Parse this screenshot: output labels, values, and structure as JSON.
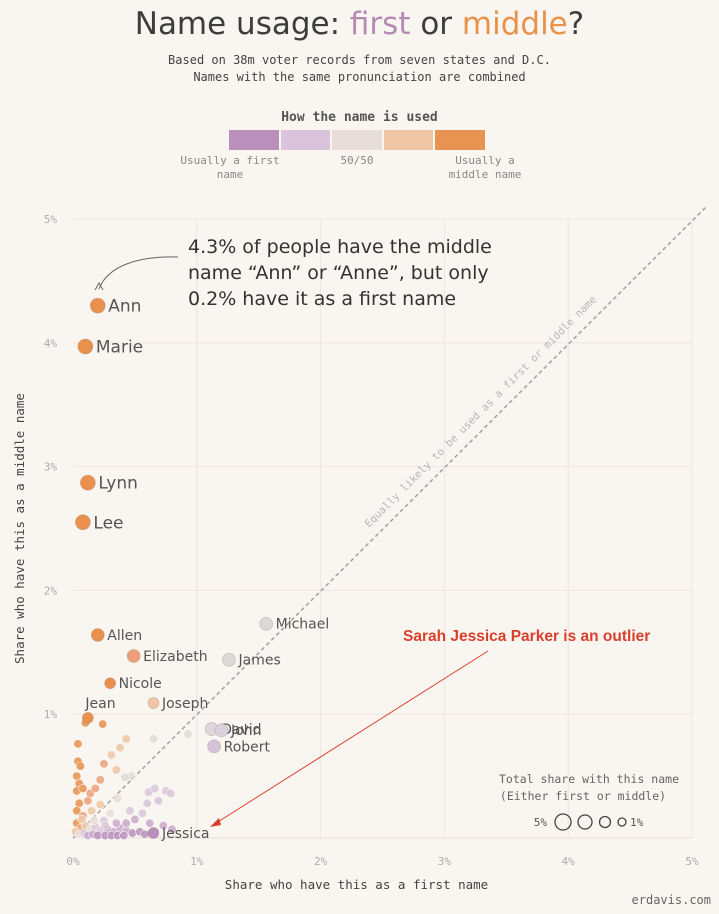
{
  "header": {
    "title_pre": "Name usage: ",
    "title_first": "first",
    "title_or": " or ",
    "title_middle": "middle",
    "title_q": "?",
    "subtitle1": "Based on 38m voter records from seven states and D.C.",
    "subtitle2": "Names with the same pronunciation are combined"
  },
  "color_legend": {
    "title": "How the name is used",
    "left_label": "Usually a first name",
    "center_label": "50/50",
    "right_label": "Usually a middle name",
    "colors": [
      "#b98fbc",
      "#d9c4dc",
      "#e8ddd8",
      "#f0c6a4",
      "#e99352"
    ]
  },
  "credit": "erdavis.com",
  "chart_data": {
    "type": "scatter",
    "title": "Name usage: first or middle?",
    "xlabel": "Share who have this as a first name",
    "ylabel": "Share who have this as a middle name",
    "xlim": [
      0,
      5
    ],
    "ylim": [
      0,
      5
    ],
    "x_ticks": [
      "0%",
      "1%",
      "2%",
      "3%",
      "4%",
      "5%"
    ],
    "y_ticks": [
      "1%",
      "2%",
      "3%",
      "4%",
      "5%"
    ],
    "grid": true,
    "diagonal_label": "Equally likely to be used as a first or middle name",
    "size_legend": {
      "title1": "Total share with this name",
      "title2": "(Either first or middle)",
      "high": "5%",
      "low": "1%"
    },
    "annotations": [
      {
        "text": "4.3% of people have the middle name “Ann” or “Anne”, but only 0.2% have it as a first name",
        "lines": [
          "4.3% of people have the middle",
          "name “Ann” or “Anne”, but only",
          "0.2% have it as a first name"
        ]
      },
      {
        "text": "Sarah Jessica Parker is an outlier"
      }
    ],
    "colors": {
      "first": "#b98fbc",
      "balanced": "#dcdad6",
      "middle": "#e8904c",
      "annotation_red": "#d9402b"
    },
    "labeled_points": [
      {
        "name": "Ann",
        "x": 0.2,
        "y": 4.3,
        "color": "#e8904c"
      },
      {
        "name": "Marie",
        "x": 0.1,
        "y": 3.97,
        "color": "#e8904c"
      },
      {
        "name": "Lynn",
        "x": 0.12,
        "y": 2.87,
        "color": "#e8904c"
      },
      {
        "name": "Lee",
        "x": 0.08,
        "y": 2.55,
        "color": "#e8904c"
      },
      {
        "name": "Allen",
        "x": 0.2,
        "y": 1.64,
        "color": "#e8904c"
      },
      {
        "name": "Elizabeth",
        "x": 0.49,
        "y": 1.47,
        "color": "#eba07a"
      },
      {
        "name": "Nicole",
        "x": 0.3,
        "y": 1.25,
        "color": "#e8904c"
      },
      {
        "name": "Jean",
        "x": 0.12,
        "y": 0.97,
        "color": "#e8904c"
      },
      {
        "name": "Joseph",
        "x": 0.65,
        "y": 1.09,
        "color": "#f0c6a4"
      },
      {
        "name": "Michael",
        "x": 1.56,
        "y": 1.73,
        "color": "#dcdad6"
      },
      {
        "name": "James",
        "x": 1.26,
        "y": 1.44,
        "color": "#dcdad6"
      },
      {
        "name": "David",
        "x": 1.12,
        "y": 0.88,
        "color": "#dcd8dd"
      },
      {
        "name": "John",
        "x": 1.2,
        "y": 0.87,
        "color": "#d9d2de"
      },
      {
        "name": "Robert",
        "x": 1.14,
        "y": 0.74,
        "color": "#d3c3da"
      },
      {
        "name": "Jessica",
        "x": 0.65,
        "y": 0.04,
        "color": "#b98fbc"
      }
    ],
    "other_points": [
      {
        "x": 0.93,
        "y": 0.84,
        "c": "#dcdad6"
      },
      {
        "x": 0.65,
        "y": 0.8,
        "c": "#dcdad6"
      },
      {
        "x": 0.47,
        "y": 0.5,
        "c": "#dcdad6"
      },
      {
        "x": 0.42,
        "y": 0.49,
        "c": "#dcdad6"
      },
      {
        "x": 0.43,
        "y": 0.8,
        "c": "#f0c6a4"
      },
      {
        "x": 0.38,
        "y": 0.73,
        "c": "#f0c6a4"
      },
      {
        "x": 0.31,
        "y": 0.67,
        "c": "#f0c6a4"
      },
      {
        "x": 0.35,
        "y": 0.55,
        "c": "#f0c6a4"
      },
      {
        "x": 0.25,
        "y": 0.6,
        "c": "#eba07a"
      },
      {
        "x": 0.22,
        "y": 0.47,
        "c": "#eba07a"
      },
      {
        "x": 0.1,
        "y": 0.93,
        "c": "#e8904c"
      },
      {
        "x": 0.24,
        "y": 0.92,
        "c": "#e8904c"
      },
      {
        "x": 0.04,
        "y": 0.76,
        "c": "#e8904c"
      },
      {
        "x": 0.04,
        "y": 0.62,
        "c": "#e8904c"
      },
      {
        "x": 0.06,
        "y": 0.58,
        "c": "#e8904c"
      },
      {
        "x": 0.03,
        "y": 0.5,
        "c": "#e8904c"
      },
      {
        "x": 0.05,
        "y": 0.44,
        "c": "#e8904c"
      },
      {
        "x": 0.03,
        "y": 0.38,
        "c": "#e8904c"
      },
      {
        "x": 0.08,
        "y": 0.4,
        "c": "#e8904c"
      },
      {
        "x": 0.14,
        "y": 0.36,
        "c": "#eba07a"
      },
      {
        "x": 0.18,
        "y": 0.4,
        "c": "#eba07a"
      },
      {
        "x": 0.12,
        "y": 0.3,
        "c": "#eba07a"
      },
      {
        "x": 0.05,
        "y": 0.28,
        "c": "#e8904c"
      },
      {
        "x": 0.03,
        "y": 0.22,
        "c": "#e8904c"
      },
      {
        "x": 0.08,
        "y": 0.18,
        "c": "#eba07a"
      },
      {
        "x": 0.15,
        "y": 0.22,
        "c": "#f0c6a4"
      },
      {
        "x": 0.22,
        "y": 0.27,
        "c": "#f0c6a4"
      },
      {
        "x": 0.3,
        "y": 0.2,
        "c": "#e8ddd8"
      },
      {
        "x": 0.36,
        "y": 0.32,
        "c": "#e8ddd8"
      },
      {
        "x": 0.25,
        "y": 0.14,
        "c": "#d9c4dc"
      },
      {
        "x": 0.03,
        "y": 0.12,
        "c": "#e8904c"
      },
      {
        "x": 0.06,
        "y": 0.08,
        "c": "#eba07a"
      },
      {
        "x": 0.1,
        "y": 0.1,
        "c": "#f0c6a4"
      },
      {
        "x": 0.14,
        "y": 0.07,
        "c": "#e8ddd8"
      },
      {
        "x": 0.18,
        "y": 0.09,
        "c": "#d9c4dc"
      },
      {
        "x": 0.22,
        "y": 0.06,
        "c": "#d9c4dc"
      },
      {
        "x": 0.28,
        "y": 0.07,
        "c": "#c9a8cd"
      },
      {
        "x": 0.33,
        "y": 0.05,
        "c": "#c9a8cd"
      },
      {
        "x": 0.38,
        "y": 0.08,
        "c": "#c9a8cd"
      },
      {
        "x": 0.43,
        "y": 0.06,
        "c": "#c9a8cd"
      },
      {
        "x": 0.48,
        "y": 0.04,
        "c": "#b98fbc"
      },
      {
        "x": 0.54,
        "y": 0.05,
        "c": "#b98fbc"
      },
      {
        "x": 0.58,
        "y": 0.03,
        "c": "#b98fbc"
      },
      {
        "x": 0.43,
        "y": 0.12,
        "c": "#c9a8cd"
      },
      {
        "x": 0.35,
        "y": 0.12,
        "c": "#c9a8cd"
      },
      {
        "x": 0.5,
        "y": 0.15,
        "c": "#c9a8cd"
      },
      {
        "x": 0.56,
        "y": 0.2,
        "c": "#d9c4dc"
      },
      {
        "x": 0.46,
        "y": 0.22,
        "c": "#d9c4dc"
      },
      {
        "x": 0.6,
        "y": 0.28,
        "c": "#d3c3da"
      },
      {
        "x": 0.69,
        "y": 0.3,
        "c": "#d3c3da"
      },
      {
        "x": 0.61,
        "y": 0.37,
        "c": "#d9c4dc"
      },
      {
        "x": 0.66,
        "y": 0.4,
        "c": "#d9c4dc"
      },
      {
        "x": 0.75,
        "y": 0.38,
        "c": "#d9c4dc"
      },
      {
        "x": 0.79,
        "y": 0.36,
        "c": "#d9c4dc"
      },
      {
        "x": 0.73,
        "y": 0.1,
        "c": "#c9a8cd"
      },
      {
        "x": 0.8,
        "y": 0.07,
        "c": "#c9a8cd"
      },
      {
        "x": 0.62,
        "y": 0.12,
        "c": "#c9a8cd"
      },
      {
        "x": 0.02,
        "y": 0.05,
        "c": "#f0c6a4"
      },
      {
        "x": 0.05,
        "y": 0.03,
        "c": "#e8ddd8"
      },
      {
        "x": 0.09,
        "y": 0.04,
        "c": "#d9c4dc"
      },
      {
        "x": 0.12,
        "y": 0.02,
        "c": "#c9a8cd"
      },
      {
        "x": 0.16,
        "y": 0.03,
        "c": "#c9a8cd"
      },
      {
        "x": 0.2,
        "y": 0.02,
        "c": "#b98fbc"
      },
      {
        "x": 0.26,
        "y": 0.02,
        "c": "#b98fbc"
      },
      {
        "x": 0.31,
        "y": 0.02,
        "c": "#b98fbc"
      },
      {
        "x": 0.36,
        "y": 0.02,
        "c": "#b98fbc"
      },
      {
        "x": 0.41,
        "y": 0.02,
        "c": "#b98fbc"
      },
      {
        "x": 0.17,
        "y": 0.14,
        "c": "#e8ddd8"
      },
      {
        "x": 0.26,
        "y": 0.1,
        "c": "#d9c4dc"
      },
      {
        "x": 0.07,
        "y": 0.15,
        "c": "#f0c6a4"
      }
    ]
  }
}
